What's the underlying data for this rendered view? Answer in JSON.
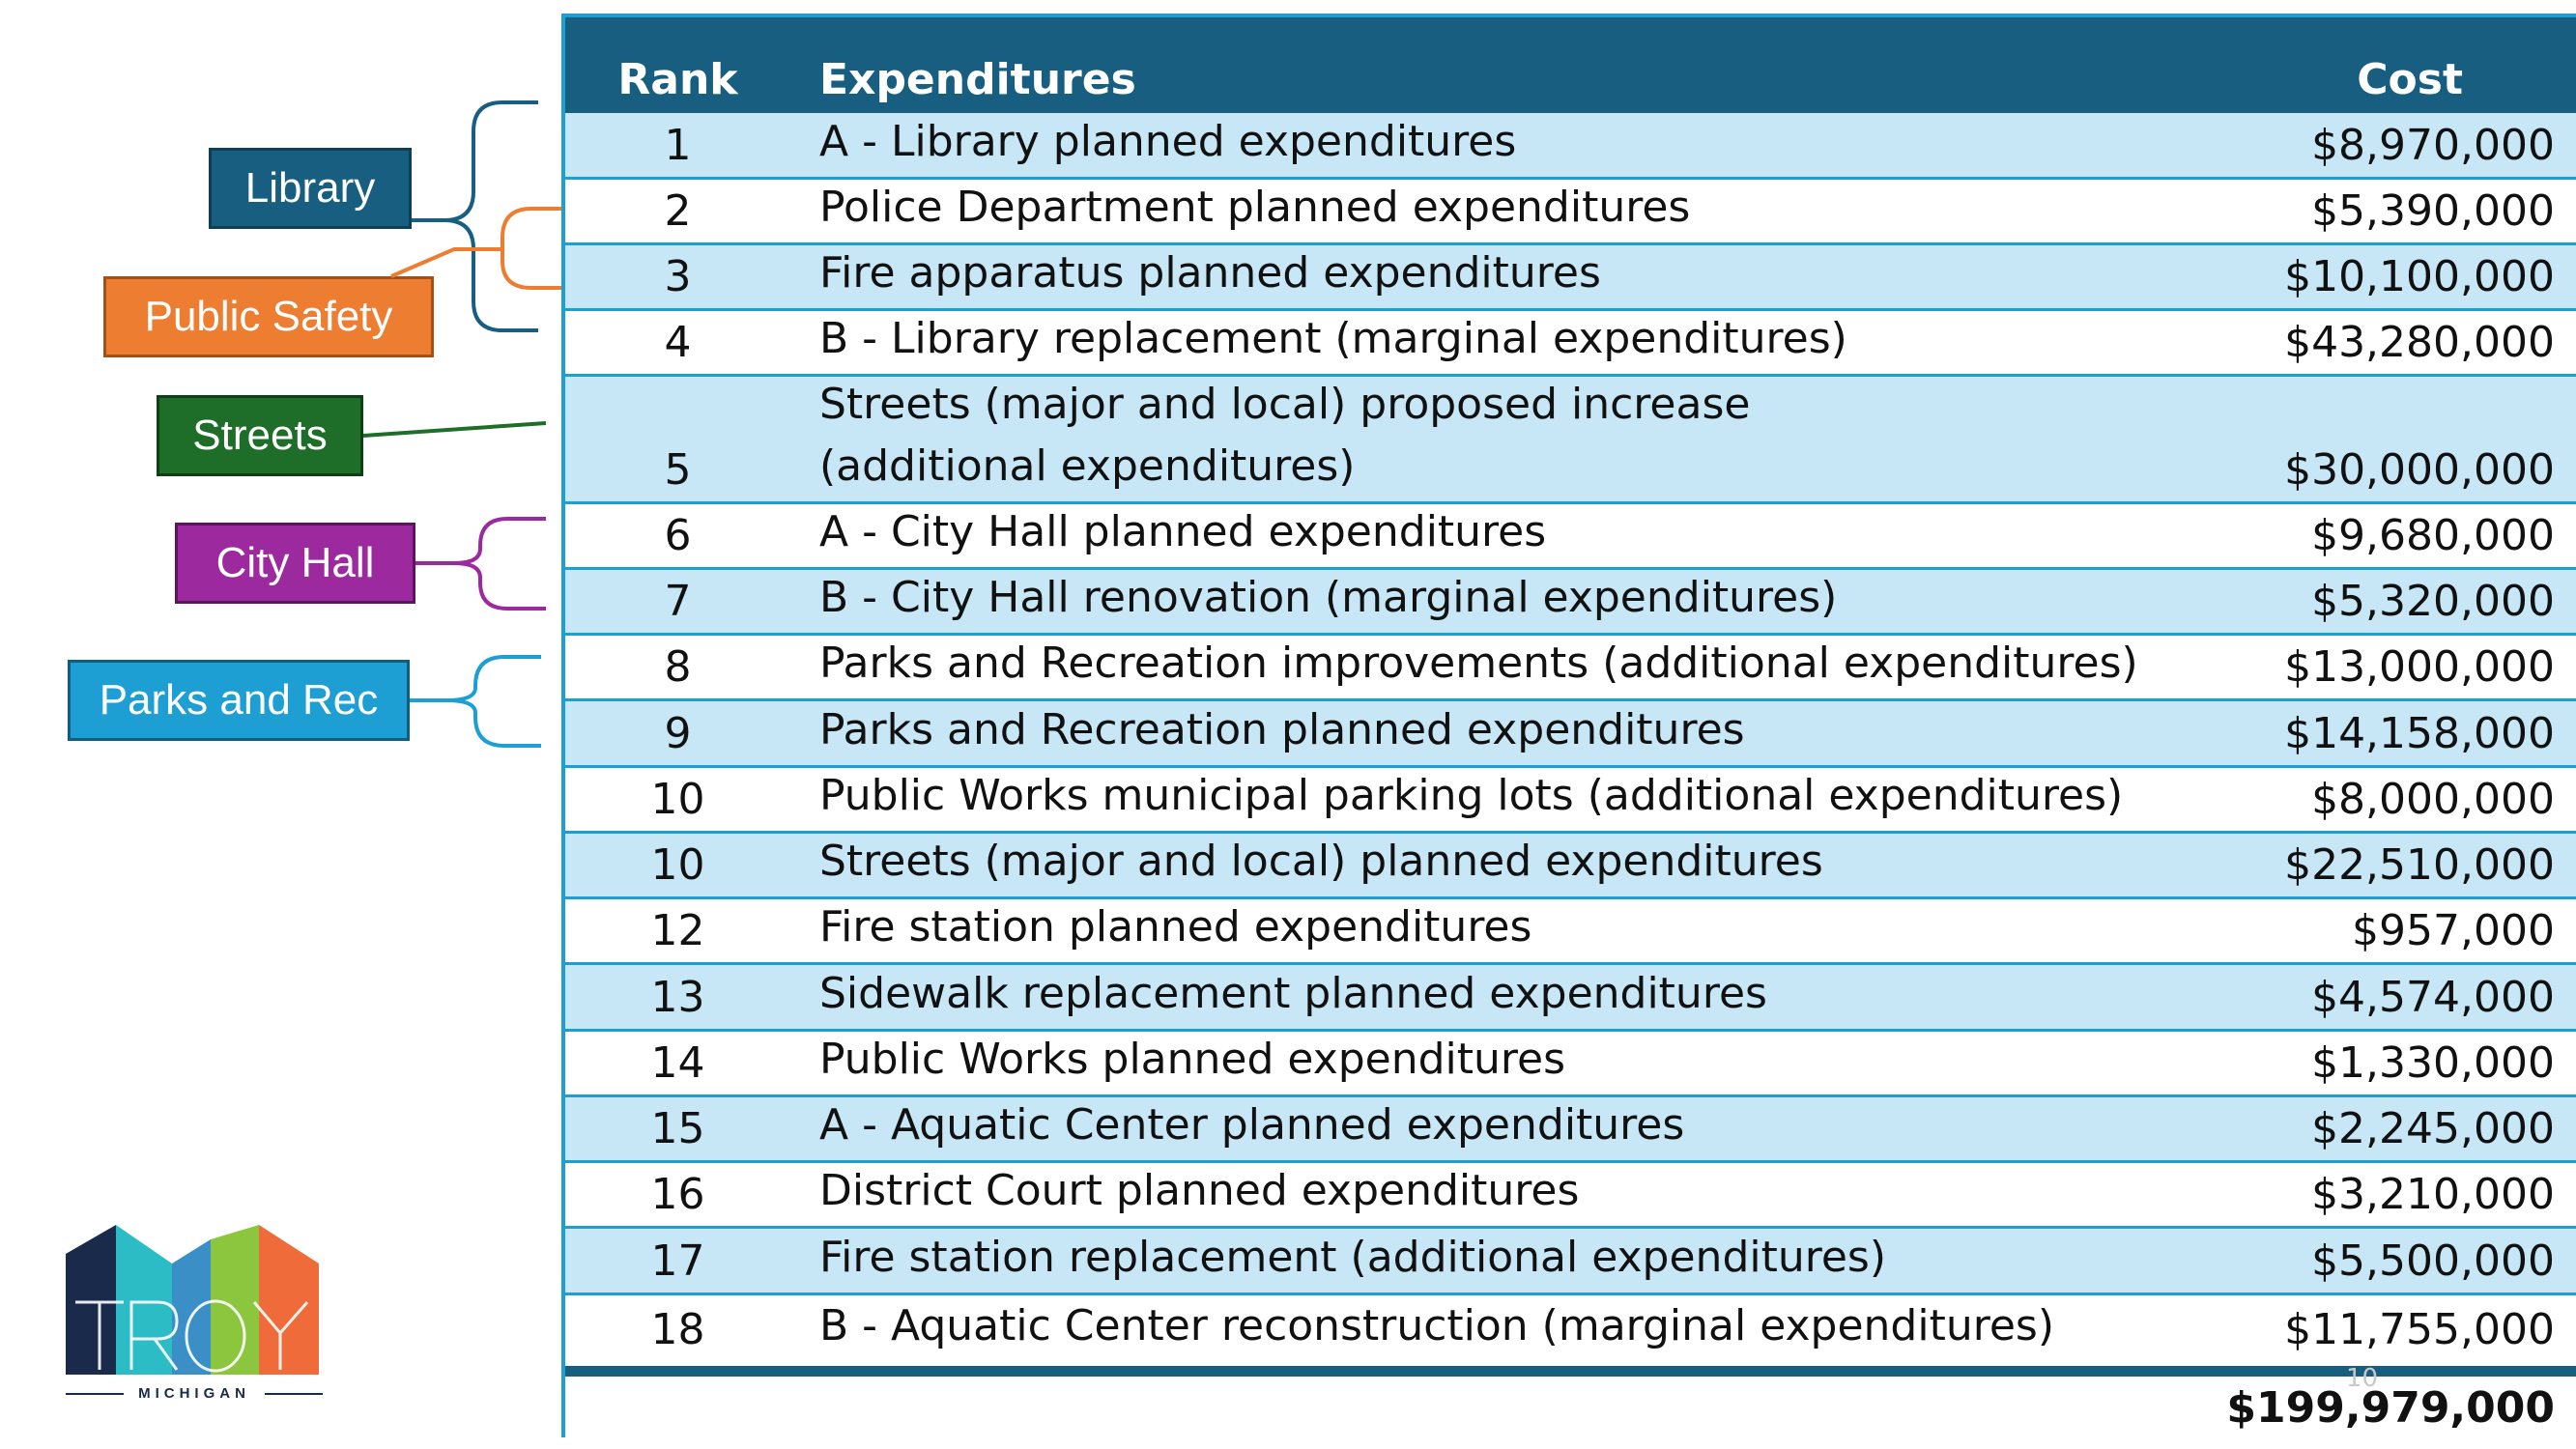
{
  "table": {
    "headers": {
      "rank": "Rank",
      "expenditures": "Expenditures",
      "cost": "Cost"
    },
    "rows": [
      {
        "rank": "1",
        "expenditure": "A - Library planned expenditures",
        "cost": "$8,970,000"
      },
      {
        "rank": "2",
        "expenditure": "Police Department planned expenditures",
        "cost": "$5,390,000"
      },
      {
        "rank": "3",
        "expenditure": "Fire apparatus planned expenditures",
        "cost": "$10,100,000"
      },
      {
        "rank": "4",
        "expenditure": "B - Library replacement (marginal expenditures)",
        "cost": "$43,280,000"
      },
      {
        "rank": "5",
        "expenditure": "Streets (major and local) proposed increase (additional expenditures)",
        "cost": "$30,000,000"
      },
      {
        "rank": "6",
        "expenditure": "A - City Hall planned expenditures",
        "cost": "$9,680,000"
      },
      {
        "rank": "7",
        "expenditure": "B - City Hall renovation (marginal expenditures)",
        "cost": "$5,320,000"
      },
      {
        "rank": "8",
        "expenditure": "Parks and Recreation improvements (additional expenditures)",
        "cost": "$13,000,000"
      },
      {
        "rank": "9",
        "expenditure": "Parks and Recreation planned expenditures",
        "cost": "$14,158,000"
      },
      {
        "rank": "10",
        "expenditure": "Public Works municipal parking lots (additional expenditures)",
        "cost": "$8,000,000"
      },
      {
        "rank": "10",
        "expenditure": "Streets (major and local) planned expenditures",
        "cost": "$22,510,000"
      },
      {
        "rank": "12",
        "expenditure": "Fire station planned expenditures",
        "cost": "$957,000"
      },
      {
        "rank": "13",
        "expenditure": "Sidewalk replacement planned expenditures",
        "cost": "$4,574,000"
      },
      {
        "rank": "14",
        "expenditure": "Public Works planned expenditures",
        "cost": "$1,330,000"
      },
      {
        "rank": "15",
        "expenditure": "A - Aquatic Center planned expenditures",
        "cost": "$2,245,000"
      },
      {
        "rank": "16",
        "expenditure": "District Court planned expenditures",
        "cost": "$3,210,000"
      },
      {
        "rank": "17",
        "expenditure": "Fire station replacement (additional expenditures)",
        "cost": "$5,500,000"
      },
      {
        "rank": "18",
        "expenditure": "B - Aquatic Center reconstruction (marginal expenditures)",
        "cost": "$11,755,000"
      }
    ],
    "total": "$199,979,000"
  },
  "categories": {
    "library": {
      "label": "Library",
      "color": "#185e80"
    },
    "public_safety": {
      "label": "Public Safety",
      "color": "#ed7d31"
    },
    "streets": {
      "label": "Streets",
      "color": "#1e6e2a"
    },
    "city_hall": {
      "label": "City Hall",
      "color": "#9c2a9e"
    },
    "parks_and_rec": {
      "label": "Parks and Rec",
      "color": "#1e9fd4"
    }
  },
  "page_number": "10",
  "logo": {
    "wordmark": "TROY",
    "subtitle": "MICHIGAN"
  },
  "colors": {
    "header": "#185e80",
    "row_shade": "#c7e6f6",
    "row_border": "#1e9fd4"
  }
}
